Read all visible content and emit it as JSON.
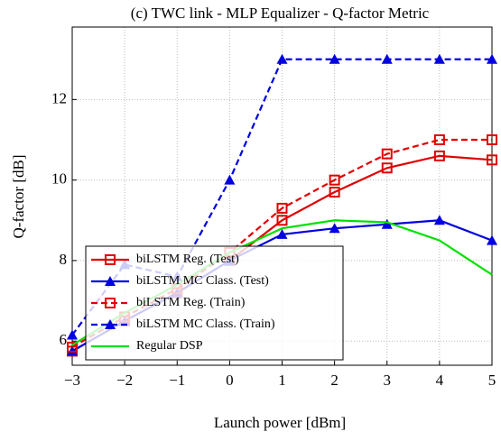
{
  "chart_data": {
    "type": "line",
    "title": "(c) TWC link - MLP Equalizer - Q-factor Metric",
    "x_label": "Launch power [dBm]",
    "y_label": "Q-factor [dB]",
    "x": [
      -3,
      -2,
      -1,
      0,
      1,
      2,
      3,
      4,
      5
    ],
    "xlim": [
      -3,
      5
    ],
    "xticks": [
      -3,
      -2,
      -1,
      0,
      1,
      2,
      3,
      4,
      5
    ],
    "ylim": [
      5.4,
      13.8
    ],
    "yticks": [
      6,
      8,
      10,
      12
    ],
    "grid": true,
    "legend": "lower left",
    "series": [
      {
        "name": "biLSTM Reg. (Test)",
        "color": "#e00000",
        "marker": "square",
        "dashed": false,
        "values": [
          5.75,
          6.5,
          7.2,
          8.0,
          9.0,
          9.7,
          10.3,
          10.6,
          10.5
        ]
      },
      {
        "name": "biLSTM MC Class. (Test)",
        "color": "#0000e0",
        "marker": "triangle",
        "dashed": false,
        "values": [
          5.75,
          6.5,
          7.2,
          8.0,
          8.65,
          8.8,
          8.9,
          9.0,
          8.5
        ]
      },
      {
        "name": "biLSTM Reg. (Train)",
        "color": "#e00000",
        "marker": "square",
        "dashed": true,
        "values": [
          5.85,
          6.6,
          7.3,
          8.2,
          9.3,
          10.0,
          10.65,
          11.0,
          11.0
        ]
      },
      {
        "name": "biLSTM MC Class. (Train)",
        "color": "#0000e0",
        "marker": "triangle",
        "dashed": true,
        "values": [
          6.15,
          7.9,
          7.6,
          10.0,
          13.0,
          13.0,
          13.0,
          13.0,
          13.0
        ]
      },
      {
        "name": "Regular DSP",
        "color": "#00e000",
        "dashed": false,
        "values": [
          5.9,
          6.7,
          7.4,
          8.2,
          8.8,
          9.0,
          8.95,
          8.5,
          7.65
        ]
      }
    ]
  }
}
